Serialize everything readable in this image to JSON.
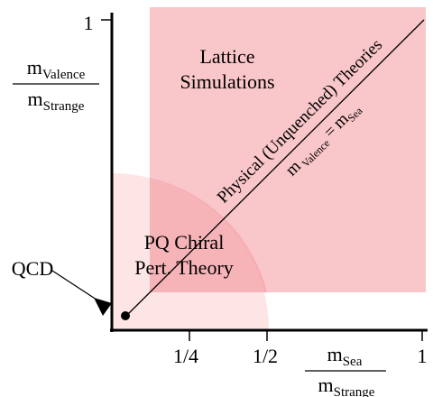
{
  "colors": {
    "lattice_region": "#f9c6c9",
    "pq_region": "#fde0e2",
    "overlap": "#f4a6ab",
    "axis": "#000000"
  },
  "axes": {
    "y_tick_label": "1",
    "x_tick_labels": [
      "1/4",
      "1/2",
      "1"
    ],
    "y_axis_label": {
      "main": "m",
      "num_sub": "Valence",
      "den_sub": "Strange"
    },
    "x_axis_label": {
      "main": "m",
      "num_sub": "Sea",
      "den_sub": "Strange"
    }
  },
  "regions": {
    "lattice_label_line1": "Lattice",
    "lattice_label_line2": "Simulations",
    "pq_label_line1": "PQ Chiral",
    "pq_label_line2": "Pert. Theory"
  },
  "diagonal": {
    "label": "Physical (Unquenched) Theories",
    "equation": {
      "main": "m",
      "left_sub": "Valence",
      "equals": "=",
      "right_sub": "Sea"
    }
  },
  "qcd_point": {
    "label": "QCD"
  }
}
